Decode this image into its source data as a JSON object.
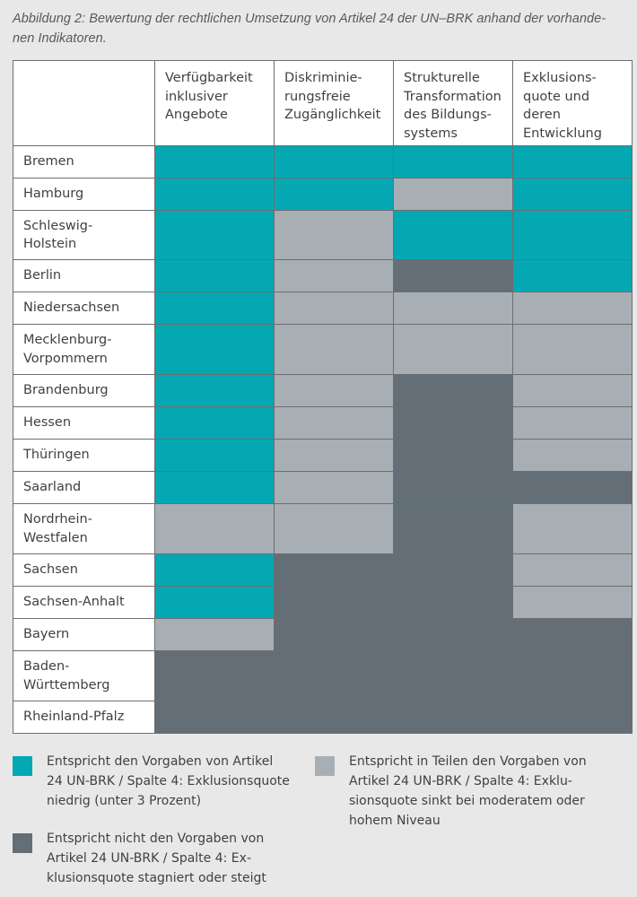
{
  "caption": "Abbildung 2: Bewertung der rechtlichen Umsetzung von Artikel 24 der UN–BRK anhand der vorhande-\nnen Indikatoren.",
  "chart_data": {
    "type": "heatmap",
    "title": "Abbildung 2: Bewertung der rechtlichen Umsetzung von Artikel 24 der UN–BRK anhand der vorhandenen Indikatoren.",
    "columns": [
      "Verfügbarkeit\ninklusiver\nAngebote",
      "Diskriminie-\nrungsfreie\nZugänglichkeit",
      "Strukturelle\nTransformation\ndes Bildungs-\nsystems",
      "Exklusions-\nquote und\nderen\nEntwicklung"
    ],
    "rows": [
      {
        "label": "Bremen",
        "values": [
          1,
          1,
          1,
          1
        ]
      },
      {
        "label": "Hamburg",
        "values": [
          1,
          1,
          2,
          1
        ]
      },
      {
        "label": "Schleswig-\nHolstein",
        "values": [
          1,
          2,
          1,
          1
        ]
      },
      {
        "label": "Berlin",
        "values": [
          1,
          2,
          3,
          1
        ]
      },
      {
        "label": "Niedersachsen",
        "values": [
          1,
          2,
          2,
          2
        ]
      },
      {
        "label": "Mecklenburg-\nVorpommern",
        "values": [
          1,
          2,
          2,
          2
        ]
      },
      {
        "label": "Brandenburg",
        "values": [
          1,
          2,
          3,
          2
        ]
      },
      {
        "label": "Hessen",
        "values": [
          1,
          2,
          3,
          2
        ]
      },
      {
        "label": "Thüringen",
        "values": [
          1,
          2,
          3,
          2
        ]
      },
      {
        "label": "Saarland",
        "values": [
          1,
          2,
          3,
          3
        ]
      },
      {
        "label": "Nordrhein-\nWestfalen",
        "values": [
          2,
          2,
          3,
          2
        ]
      },
      {
        "label": "Sachsen",
        "values": [
          1,
          3,
          3,
          2
        ]
      },
      {
        "label": "Sachsen-Anhalt",
        "values": [
          1,
          3,
          3,
          2
        ]
      },
      {
        "label": "Bayern",
        "values": [
          2,
          3,
          3,
          3
        ]
      },
      {
        "label": "Baden-\nWürttemberg",
        "values": [
          3,
          3,
          3,
          3
        ]
      },
      {
        "label": "Rheinland-Pfalz",
        "values": [
          3,
          3,
          3,
          3
        ]
      }
    ],
    "colors": {
      "1": "#04a8b3",
      "2": "#a8afb4",
      "3": "#636e76"
    },
    "legend": [
      {
        "value": 1,
        "text": "Entspricht den Vorgaben von Artikel\n24 UN-BRK / Spalte 4: Exklusionsquote\nniedrig (unter 3 Prozent)"
      },
      {
        "value": 2,
        "text": "Entspricht in Teilen den Vorgaben von\nArtikel 24 UN-BRK / Spalte 4: Exklu-\nsionsquote sinkt bei moderatem oder\nhohem Niveau"
      },
      {
        "value": 3,
        "text": "Entspricht nicht den Vorgaben von\nArtikel 24 UN-BRK / Spalte 4: Ex-\nklusionsquote stagniert oder steigt"
      }
    ]
  }
}
